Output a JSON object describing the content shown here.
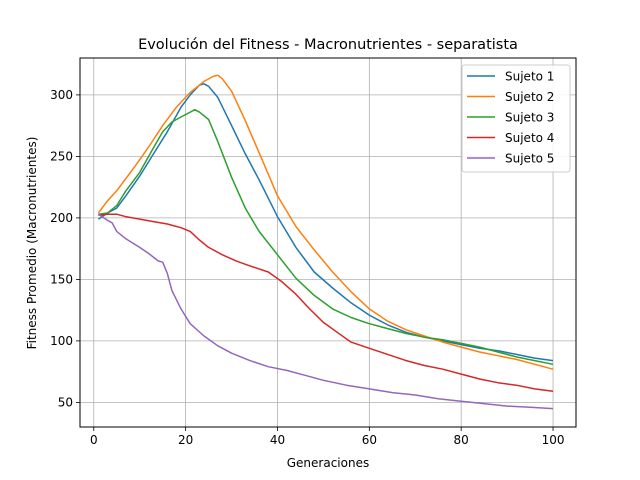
{
  "chart_data": {
    "type": "line",
    "title": "Evolución del Fitness - Macronutrientes - separatista",
    "xlabel": "Generaciones",
    "ylabel": "Fitness Promedio (Macronutrientes)",
    "xlim": [
      -3,
      105
    ],
    "ylim": [
      30,
      330
    ],
    "xticks": [
      0,
      20,
      40,
      60,
      80,
      100
    ],
    "yticks": [
      50,
      100,
      150,
      200,
      250,
      300
    ],
    "grid": true,
    "legend_position": "top-right",
    "series": [
      {
        "name": "Sujeto 1",
        "color": "#1f77b4",
        "points": [
          [
            1,
            199
          ],
          [
            3,
            204
          ],
          [
            5,
            208
          ],
          [
            7,
            218
          ],
          [
            10,
            234
          ],
          [
            13,
            252
          ],
          [
            16,
            270
          ],
          [
            19,
            290
          ],
          [
            21,
            300
          ],
          [
            23,
            308
          ],
          [
            24,
            309
          ],
          [
            25,
            307
          ],
          [
            27,
            298
          ],
          [
            30,
            275
          ],
          [
            33,
            252
          ],
          [
            36,
            231
          ],
          [
            40,
            201
          ],
          [
            44,
            176
          ],
          [
            48,
            156
          ],
          [
            52,
            143
          ],
          [
            56,
            131
          ],
          [
            60,
            121
          ],
          [
            64,
            113
          ],
          [
            68,
            107
          ],
          [
            72,
            103
          ],
          [
            76,
            100
          ],
          [
            80,
            97
          ],
          [
            84,
            94
          ],
          [
            88,
            92
          ],
          [
            92,
            89
          ],
          [
            96,
            86
          ],
          [
            100,
            84
          ]
        ]
      },
      {
        "name": "Sujeto 2",
        "color": "#ff7f0e",
        "points": [
          [
            1,
            204
          ],
          [
            3,
            214
          ],
          [
            5,
            222
          ],
          [
            7,
            232
          ],
          [
            9,
            242
          ],
          [
            12,
            258
          ],
          [
            15,
            275
          ],
          [
            18,
            290
          ],
          [
            21,
            302
          ],
          [
            24,
            311
          ],
          [
            26,
            315
          ],
          [
            27,
            316
          ],
          [
            28,
            313
          ],
          [
            30,
            303
          ],
          [
            33,
            279
          ],
          [
            36,
            253
          ],
          [
            40,
            218
          ],
          [
            44,
            193
          ],
          [
            48,
            174
          ],
          [
            52,
            156
          ],
          [
            56,
            140
          ],
          [
            60,
            126
          ],
          [
            64,
            116
          ],
          [
            68,
            109
          ],
          [
            72,
            104
          ],
          [
            76,
            99
          ],
          [
            80,
            95
          ],
          [
            84,
            91
          ],
          [
            88,
            88
          ],
          [
            92,
            85
          ],
          [
            96,
            81
          ],
          [
            100,
            77
          ]
        ]
      },
      {
        "name": "Sujeto 3",
        "color": "#2ca02c",
        "points": [
          [
            1,
            203
          ],
          [
            3,
            204
          ],
          [
            5,
            210
          ],
          [
            7,
            222
          ],
          [
            10,
            237
          ],
          [
            13,
            257
          ],
          [
            15,
            270
          ],
          [
            17,
            278
          ],
          [
            19,
            282
          ],
          [
            21,
            286
          ],
          [
            22,
            288
          ],
          [
            23,
            286
          ],
          [
            25,
            280
          ],
          [
            27,
            262
          ],
          [
            30,
            233
          ],
          [
            33,
            208
          ],
          [
            36,
            189
          ],
          [
            40,
            170
          ],
          [
            44,
            151
          ],
          [
            48,
            137
          ],
          [
            52,
            126
          ],
          [
            56,
            119
          ],
          [
            60,
            114
          ],
          [
            64,
            110
          ],
          [
            68,
            106
          ],
          [
            72,
            103
          ],
          [
            76,
            101
          ],
          [
            80,
            98
          ],
          [
            84,
            95
          ],
          [
            88,
            91
          ],
          [
            92,
            87
          ],
          [
            96,
            84
          ],
          [
            100,
            81
          ]
        ]
      },
      {
        "name": "Sujeto 4",
        "color": "#d62728",
        "points": [
          [
            1,
            202
          ],
          [
            3,
            203
          ],
          [
            5,
            203
          ],
          [
            7,
            201
          ],
          [
            10,
            199
          ],
          [
            13,
            197
          ],
          [
            16,
            195
          ],
          [
            19,
            192
          ],
          [
            21,
            189
          ],
          [
            23,
            182
          ],
          [
            25,
            176
          ],
          [
            28,
            170
          ],
          [
            31,
            165
          ],
          [
            34,
            161
          ],
          [
            38,
            156
          ],
          [
            41,
            148
          ],
          [
            44,
            138
          ],
          [
            47,
            126
          ],
          [
            50,
            115
          ],
          [
            53,
            107
          ],
          [
            56,
            99
          ],
          [
            60,
            94
          ],
          [
            64,
            89
          ],
          [
            68,
            84
          ],
          [
            72,
            80
          ],
          [
            76,
            77
          ],
          [
            80,
            73
          ],
          [
            84,
            69
          ],
          [
            88,
            66
          ],
          [
            92,
            64
          ],
          [
            96,
            61
          ],
          [
            100,
            59
          ]
        ]
      },
      {
        "name": "Sujeto 5",
        "color": "#9467bd",
        "points": [
          [
            1,
            203
          ],
          [
            3,
            198
          ],
          [
            4,
            196
          ],
          [
            5,
            189
          ],
          [
            7,
            183
          ],
          [
            10,
            176
          ],
          [
            12,
            171
          ],
          [
            14,
            165
          ],
          [
            15,
            164
          ],
          [
            16,
            155
          ],
          [
            17,
            141
          ],
          [
            19,
            126
          ],
          [
            21,
            114
          ],
          [
            24,
            104
          ],
          [
            27,
            96
          ],
          [
            30,
            90
          ],
          [
            34,
            84
          ],
          [
            38,
            79
          ],
          [
            42,
            76
          ],
          [
            46,
            72
          ],
          [
            50,
            68
          ],
          [
            55,
            64
          ],
          [
            60,
            61
          ],
          [
            65,
            58
          ],
          [
            70,
            56
          ],
          [
            75,
            53
          ],
          [
            80,
            51
          ],
          [
            85,
            49
          ],
          [
            90,
            47
          ],
          [
            95,
            46
          ],
          [
            100,
            45
          ]
        ]
      }
    ]
  }
}
